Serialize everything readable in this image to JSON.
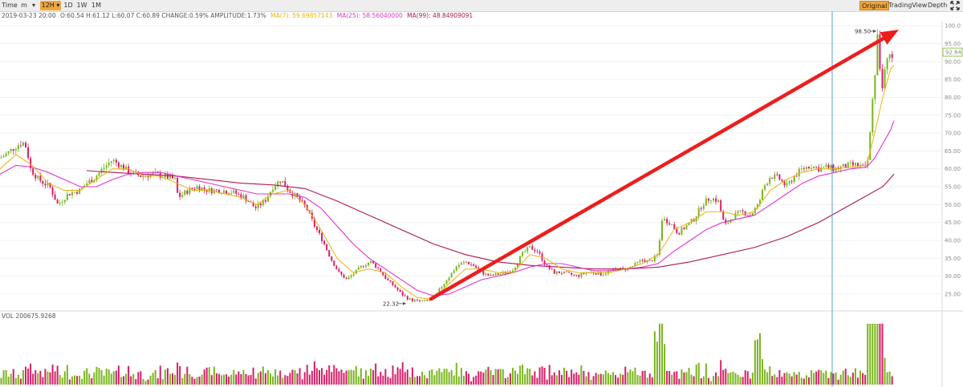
{
  "toolbar": {
    "time_label": "Time",
    "intervals": [
      "m",
      "12H",
      "1D",
      "1W",
      "1M"
    ],
    "active_interval": "12H",
    "views": [
      "Original",
      "TradingView",
      "Depth"
    ],
    "active_view": "Original"
  },
  "info": {
    "date": "2019-03-23 20:00",
    "ohlc": "O:60.54 H:61.12 L:60.07 C:60.89 CHANGE:0.59% AMPLITUDE:1.73%",
    "ma7": "MA(7): 59.69857143",
    "ma25": "MA(25): 58.56040000",
    "ma99": "MA(99): 48.84909091"
  },
  "volume_label": "VOL 200675.9268",
  "colors": {
    "up": "#7ab51d",
    "down": "#d81e6a",
    "ma7": "#e7b40e",
    "ma25": "#e034c8",
    "ma99": "#b01556",
    "arrow": "#ee1d1d",
    "crosshair": "#5b9bd5"
  },
  "chart_data": {
    "type": "candlestick",
    "interval": "12H",
    "y_axis": {
      "ticks": [
        25,
        30,
        35,
        40,
        45,
        50,
        55,
        60,
        65,
        70,
        75,
        80,
        85,
        90,
        95,
        100
      ],
      "tick_labels": [
        "25.00",
        "30.00",
        "35.00",
        "40.00",
        "45.00",
        "50.00",
        "55.00",
        "60.00",
        "65.00",
        "70.00",
        "75.00",
        "80.00",
        "85.00",
        "90.00",
        "95.00",
        "100.0"
      ],
      "range": [
        20.5,
        100.5
      ]
    },
    "current_price_label": "92.64",
    "annotations": {
      "high": {
        "label": "98.50",
        "value": 98.5
      },
      "low": {
        "label": "22.32",
        "value": 22.32
      }
    },
    "price_points": [
      [
        0,
        63
      ],
      [
        10,
        64.5
      ],
      [
        18,
        66
      ],
      [
        28,
        67.5
      ],
      [
        33,
        66
      ],
      [
        38,
        60
      ],
      [
        48,
        57
      ],
      [
        62,
        55
      ],
      [
        72,
        50
      ],
      [
        85,
        53
      ],
      [
        100,
        54
      ],
      [
        108,
        56
      ],
      [
        118,
        57.5
      ],
      [
        128,
        60
      ],
      [
        140,
        62.5
      ],
      [
        150,
        61
      ],
      [
        162,
        59
      ],
      [
        175,
        58
      ],
      [
        190,
        58.5
      ],
      [
        205,
        58
      ],
      [
        218,
        57
      ],
      [
        222,
        52
      ],
      [
        235,
        54
      ],
      [
        245,
        55
      ],
      [
        260,
        54
      ],
      [
        275,
        54
      ],
      [
        290,
        53.5
      ],
      [
        305,
        52
      ],
      [
        318,
        49
      ],
      [
        330,
        51
      ],
      [
        340,
        55
      ],
      [
        350,
        57
      ],
      [
        360,
        54
      ],
      [
        370,
        52
      ],
      [
        382,
        49
      ],
      [
        392,
        44
      ],
      [
        402,
        40
      ],
      [
        412,
        35
      ],
      [
        422,
        31
      ],
      [
        432,
        29
      ],
      [
        442,
        31
      ],
      [
        452,
        33
      ],
      [
        462,
        34
      ],
      [
        472,
        32
      ],
      [
        482,
        29
      ],
      [
        492,
        27
      ],
      [
        500,
        25
      ],
      [
        510,
        23.5
      ],
      [
        520,
        23
      ],
      [
        530,
        23
      ],
      [
        540,
        23.5
      ],
      [
        550,
        27
      ],
      [
        560,
        30
      ],
      [
        570,
        33
      ],
      [
        580,
        34
      ],
      [
        590,
        33
      ],
      [
        600,
        31
      ],
      [
        610,
        30
      ],
      [
        620,
        30.5
      ],
      [
        630,
        31
      ],
      [
        640,
        32
      ],
      [
        650,
        36
      ],
      [
        660,
        38
      ],
      [
        670,
        37
      ],
      [
        680,
        33
      ],
      [
        690,
        31
      ],
      [
        700,
        31
      ],
      [
        710,
        30.5
      ],
      [
        720,
        30
      ],
      [
        730,
        31
      ],
      [
        740,
        31
      ],
      [
        750,
        30.5
      ],
      [
        760,
        31.5
      ],
      [
        770,
        32
      ],
      [
        780,
        32
      ],
      [
        790,
        33
      ],
      [
        800,
        34.5
      ],
      [
        810,
        34
      ],
      [
        820,
        36
      ],
      [
        825,
        46
      ],
      [
        835,
        45
      ],
      [
        845,
        42
      ],
      [
        855,
        44
      ],
      [
        865,
        46
      ],
      [
        875,
        50
      ],
      [
        885,
        52
      ],
      [
        895,
        51
      ],
      [
        903,
        44
      ],
      [
        915,
        47
      ],
      [
        925,
        48
      ],
      [
        935,
        47
      ],
      [
        945,
        50
      ],
      [
        952,
        55
      ],
      [
        960,
        58
      ],
      [
        970,
        57.5
      ],
      [
        980,
        55
      ],
      [
        990,
        58
      ],
      [
        1000,
        60
      ],
      [
        1010,
        61
      ],
      [
        1020,
        60
      ],
      [
        1030,
        60.5
      ],
      [
        1040,
        60
      ],
      [
        1050,
        60.5
      ],
      [
        1060,
        61
      ],
      [
        1070,
        61
      ],
      [
        1078,
        60
      ],
      [
        1082,
        63
      ],
      [
        1086,
        75
      ],
      [
        1090,
        86
      ],
      [
        1094,
        98.5
      ],
      [
        1098,
        82
      ],
      [
        1102,
        86
      ],
      [
        1106,
        90
      ],
      [
        1110,
        92.64
      ],
      [
        1114,
        92
      ]
    ],
    "ma7_points": [
      [
        0,
        60
      ],
      [
        20,
        64
      ],
      [
        40,
        61
      ],
      [
        60,
        56
      ],
      [
        80,
        54
      ],
      [
        100,
        54
      ],
      [
        120,
        57
      ],
      [
        140,
        60
      ],
      [
        160,
        60
      ],
      [
        180,
        58
      ],
      [
        200,
        58
      ],
      [
        220,
        56
      ],
      [
        240,
        54
      ],
      [
        260,
        54
      ],
      [
        280,
        53
      ],
      [
        300,
        52
      ],
      [
        320,
        50
      ],
      [
        340,
        53
      ],
      [
        360,
        54
      ],
      [
        380,
        50
      ],
      [
        400,
        43
      ],
      [
        420,
        35
      ],
      [
        440,
        31
      ],
      [
        460,
        32
      ],
      [
        480,
        31
      ],
      [
        500,
        27
      ],
      [
        520,
        24
      ],
      [
        540,
        23.5
      ],
      [
        560,
        28
      ],
      [
        580,
        32
      ],
      [
        600,
        32
      ],
      [
        620,
        31
      ],
      [
        640,
        31
      ],
      [
        660,
        36
      ],
      [
        680,
        35
      ],
      [
        700,
        32
      ],
      [
        720,
        31
      ],
      [
        740,
        31
      ],
      [
        760,
        31
      ],
      [
        780,
        32
      ],
      [
        800,
        33.5
      ],
      [
        820,
        36
      ],
      [
        840,
        43
      ],
      [
        860,
        45
      ],
      [
        880,
        48
      ],
      [
        900,
        48
      ],
      [
        920,
        47
      ],
      [
        940,
        48
      ],
      [
        960,
        54
      ],
      [
        980,
        57
      ],
      [
        1000,
        59
      ],
      [
        1020,
        60
      ],
      [
        1040,
        60
      ],
      [
        1060,
        60.5
      ],
      [
        1080,
        61
      ],
      [
        1090,
        70
      ],
      [
        1100,
        80
      ],
      [
        1110,
        88
      ],
      [
        1114,
        89
      ]
    ],
    "ma25_points": [
      [
        0,
        58.5
      ],
      [
        20,
        61
      ],
      [
        40,
        60.5
      ],
      [
        60,
        59
      ],
      [
        80,
        57
      ],
      [
        100,
        55
      ],
      [
        120,
        55
      ],
      [
        140,
        57
      ],
      [
        160,
        58.5
      ],
      [
        180,
        59
      ],
      [
        200,
        59
      ],
      [
        220,
        58
      ],
      [
        240,
        57
      ],
      [
        260,
        56
      ],
      [
        280,
        55
      ],
      [
        300,
        54
      ],
      [
        320,
        53
      ],
      [
        340,
        53
      ],
      [
        360,
        53
      ],
      [
        380,
        52
      ],
      [
        400,
        49
      ],
      [
        420,
        44
      ],
      [
        440,
        39
      ],
      [
        460,
        35
      ],
      [
        480,
        32
      ],
      [
        500,
        29
      ],
      [
        520,
        26
      ],
      [
        540,
        24.5
      ],
      [
        560,
        25
      ],
      [
        580,
        27
      ],
      [
        600,
        29
      ],
      [
        620,
        30
      ],
      [
        640,
        31
      ],
      [
        660,
        32.5
      ],
      [
        680,
        33.5
      ],
      [
        700,
        33.5
      ],
      [
        720,
        32.5
      ],
      [
        740,
        31.5
      ],
      [
        760,
        31.5
      ],
      [
        780,
        32
      ],
      [
        800,
        32.5
      ],
      [
        820,
        33.5
      ],
      [
        840,
        37
      ],
      [
        860,
        40
      ],
      [
        880,
        43
      ],
      [
        900,
        45
      ],
      [
        920,
        46
      ],
      [
        940,
        47
      ],
      [
        960,
        50
      ],
      [
        980,
        53
      ],
      [
        1000,
        56
      ],
      [
        1020,
        58
      ],
      [
        1040,
        59
      ],
      [
        1060,
        60
      ],
      [
        1080,
        60.5
      ],
      [
        1090,
        63
      ],
      [
        1100,
        67
      ],
      [
        1110,
        71
      ],
      [
        1114,
        73.5
      ]
    ],
    "ma99_points": [
      [
        108,
        59.5
      ],
      [
        140,
        59
      ],
      [
        180,
        58.5
      ],
      [
        220,
        58
      ],
      [
        260,
        57
      ],
      [
        300,
        56
      ],
      [
        340,
        55.5
      ],
      [
        380,
        54.5
      ],
      [
        420,
        51
      ],
      [
        460,
        47
      ],
      [
        500,
        43
      ],
      [
        540,
        39
      ],
      [
        580,
        36
      ],
      [
        620,
        34
      ],
      [
        660,
        33
      ],
      [
        700,
        32.5
      ],
      [
        740,
        32
      ],
      [
        780,
        32
      ],
      [
        820,
        32.5
      ],
      [
        860,
        34
      ],
      [
        900,
        36
      ],
      [
        940,
        38
      ],
      [
        980,
        41
      ],
      [
        1020,
        45
      ],
      [
        1060,
        50
      ],
      [
        1100,
        55
      ],
      [
        1114,
        58.5
      ]
    ]
  }
}
